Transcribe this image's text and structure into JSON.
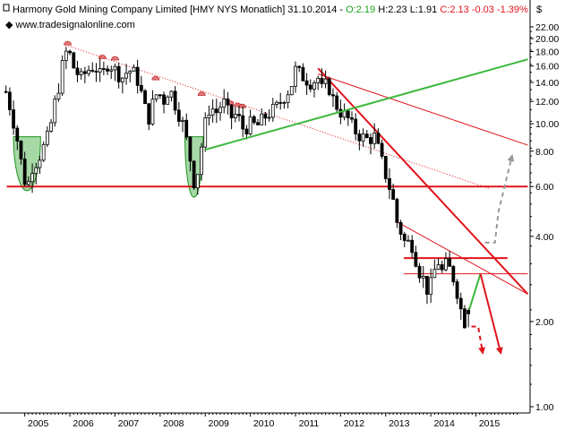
{
  "header": {
    "name_part": "Harmony Gold Mining Company Limited [HMY NYS  Monatlich] 31.10.2014 - ",
    "open_part": "O:2.19",
    "hlc_part": " H:2.23 L:1.91 ",
    "change_part": "C:2.13 -0.03 -1.39%",
    "currency": "$",
    "website": "www.tradesignalonline.com",
    "colors": {
      "open": "#1aa31a",
      "change": "#e0141c"
    }
  },
  "chart_data": {
    "type": "candlestick",
    "title": "Harmony Gold Mining Company Limited [HMY NYS  Monatlich]",
    "y_scale": "log",
    "ylim": [
      1.0,
      22.0
    ],
    "y_ticks": [
      1.0,
      2.0,
      4.0,
      6.0,
      8.0,
      10.0,
      12.0,
      14.0,
      16.0,
      18.0,
      20.0,
      22.0
    ],
    "y_tick_labels": [
      "1.00",
      "2.00",
      "4.00",
      "6.00",
      "8.00",
      "10.00",
      "12.00",
      "14.00",
      "16.00",
      "18.00",
      "20.00",
      "22.00"
    ],
    "xlim": [
      2004.55,
      2016.2
    ],
    "x_ticks": [
      2005,
      2006,
      2007,
      2008,
      2009,
      2010,
      2011,
      2012,
      2013,
      2014,
      2015
    ],
    "x_tick_labels": [
      "2005",
      "2006",
      "2007",
      "2008",
      "2009",
      "2010",
      "2011",
      "2012",
      "2013",
      "2014",
      "2015"
    ],
    "grid": false,
    "last_bar": {
      "date": "31.10.2014",
      "open": 2.19,
      "high": 2.23,
      "low": 1.91,
      "close": 2.13,
      "change": -0.03,
      "change_pct": -1.39
    },
    "price_waypoints": [
      [
        2004.58,
        13.0
      ],
      [
        2004.7,
        11.0
      ],
      [
        2004.85,
        8.5
      ],
      [
        2004.95,
        6.8
      ],
      [
        2005.05,
        5.8
      ],
      [
        2005.15,
        7.0
      ],
      [
        2005.3,
        7.5
      ],
      [
        2005.45,
        8.5
      ],
      [
        2005.55,
        9.3
      ],
      [
        2005.65,
        11.5
      ],
      [
        2005.75,
        13.5
      ],
      [
        2005.85,
        16.5
      ],
      [
        2005.95,
        18.5
      ],
      [
        2006.1,
        15.5
      ],
      [
        2006.25,
        14.5
      ],
      [
        2006.4,
        15.5
      ],
      [
        2006.55,
        16.0
      ],
      [
        2006.7,
        14.5
      ],
      [
        2006.85,
        16.5
      ],
      [
        2007.0,
        15.5
      ],
      [
        2007.15,
        14.5
      ],
      [
        2007.3,
        15.5
      ],
      [
        2007.45,
        15.0
      ],
      [
        2007.55,
        13.5
      ],
      [
        2007.65,
        11.5
      ],
      [
        2007.75,
        10.5
      ],
      [
        2007.85,
        12.0
      ],
      [
        2007.95,
        13.0
      ],
      [
        2008.1,
        12.0
      ],
      [
        2008.2,
        13.5
      ],
      [
        2008.35,
        11.5
      ],
      [
        2008.5,
        10.0
      ],
      [
        2008.6,
        8.5
      ],
      [
        2008.7,
        7.0
      ],
      [
        2008.78,
        5.8
      ],
      [
        2008.9,
        8.0
      ],
      [
        2009.0,
        10.0
      ],
      [
        2009.1,
        11.5
      ],
      [
        2009.25,
        11.0
      ],
      [
        2009.4,
        12.0
      ],
      [
        2009.55,
        10.5
      ],
      [
        2009.7,
        10.8
      ],
      [
        2009.85,
        9.5
      ],
      [
        2010.0,
        10.0
      ],
      [
        2010.15,
        9.8
      ],
      [
        2010.3,
        10.5
      ],
      [
        2010.45,
        11.0
      ],
      [
        2010.6,
        11.5
      ],
      [
        2010.75,
        12.5
      ],
      [
        2010.9,
        13.5
      ],
      [
        2011.0,
        15.5
      ],
      [
        2011.1,
        15.0
      ],
      [
        2011.2,
        14.5
      ],
      [
        2011.35,
        14.0
      ],
      [
        2011.5,
        14.5
      ],
      [
        2011.6,
        13.0
      ],
      [
        2011.7,
        14.0
      ],
      [
        2011.85,
        12.0
      ],
      [
        2012.0,
        11.0
      ],
      [
        2012.15,
        10.5
      ],
      [
        2012.3,
        9.5
      ],
      [
        2012.45,
        9.0
      ],
      [
        2012.6,
        8.8
      ],
      [
        2012.75,
        9.0
      ],
      [
        2012.85,
        8.0
      ],
      [
        2012.95,
        7.0
      ],
      [
        2013.05,
        6.2
      ],
      [
        2013.15,
        5.5
      ],
      [
        2013.25,
        4.5
      ],
      [
        2013.35,
        4.1
      ],
      [
        2013.45,
        3.7
      ],
      [
        2013.55,
        3.9
      ],
      [
        2013.65,
        3.4
      ],
      [
        2013.75,
        3.0
      ],
      [
        2013.85,
        2.8
      ],
      [
        2013.95,
        2.5
      ],
      [
        2014.05,
        2.9
      ],
      [
        2014.15,
        3.3
      ],
      [
        2014.25,
        3.0
      ],
      [
        2014.35,
        3.2
      ],
      [
        2014.45,
        3.0
      ],
      [
        2014.55,
        2.7
      ],
      [
        2014.65,
        2.25
      ],
      [
        2014.75,
        2.0
      ],
      [
        2014.83,
        2.13
      ]
    ],
    "annotations": [
      {
        "type": "ellipse",
        "color": "#1e961e",
        "x": [
          2004.75,
          2005.35
        ],
        "y": [
          5.8,
          9.0
        ]
      },
      {
        "type": "ellipse",
        "color": "#1e961e",
        "x": [
          2008.55,
          2008.95
        ],
        "y": [
          5.5,
          9.0
        ]
      },
      {
        "type": "top_marker",
        "color": "#e07b7b",
        "points": [
          [
            2005.95,
            19.0
          ],
          [
            2006.72,
            17.0
          ],
          [
            2007.0,
            16.8
          ],
          [
            2007.9,
            14.3
          ],
          [
            2008.92,
            12.6
          ],
          [
            2009.55,
            11.7
          ],
          [
            2009.72,
            11.5
          ],
          [
            2009.82,
            11.4
          ]
        ]
      },
      {
        "type": "line",
        "color": "#e0141c",
        "style": "dotted",
        "from": [
          2005.9,
          19.0
        ],
        "to": [
          2015.3,
          5.9
        ]
      },
      {
        "type": "line",
        "color": "#e0141c",
        "style": "solid",
        "width": 2,
        "from": [
          2004.6,
          6.0
        ],
        "to": [
          2016.15,
          6.0
        ]
      },
      {
        "type": "line",
        "color": "#e0141c",
        "style": "solid",
        "width": 2,
        "from": [
          2011.5,
          15.7
        ],
        "to": [
          2016.15,
          2.5
        ]
      },
      {
        "type": "line",
        "color": "#e0141c",
        "style": "solid",
        "width": 1,
        "from": [
          2011.5,
          15.0
        ],
        "to": [
          2016.15,
          8.4
        ]
      },
      {
        "type": "line",
        "color": "#e0141c",
        "style": "solid",
        "width": 1,
        "from": [
          2013.25,
          4.5
        ],
        "to": [
          2016.15,
          2.5
        ]
      },
      {
        "type": "line",
        "color": "#e0141c",
        "style": "solid",
        "width": 2,
        "from": [
          2013.4,
          3.35
        ],
        "to": [
          2015.7,
          3.35
        ]
      },
      {
        "type": "line",
        "color": "#e0141c",
        "style": "solid",
        "width": 1,
        "from": [
          2013.4,
          2.95
        ],
        "to": [
          2016.15,
          2.95
        ]
      },
      {
        "type": "line",
        "color": "#3cb83c",
        "style": "solid",
        "width": 2,
        "from": [
          2009.0,
          8.1
        ],
        "to": [
          2016.15,
          16.9
        ]
      },
      {
        "type": "path",
        "color": "#3cb83c",
        "style": "solid",
        "width": 2,
        "points": [
          [
            2014.85,
            2.2
          ],
          [
            2015.1,
            2.95
          ]
        ]
      },
      {
        "type": "arrow",
        "color": "#e0141c",
        "style": "solid",
        "width": 2,
        "points": [
          [
            2015.1,
            2.95
          ],
          [
            2015.55,
            1.55
          ]
        ]
      },
      {
        "type": "arrow",
        "color": "#e0141c",
        "style": "dashed",
        "width": 2,
        "points": [
          [
            2014.9,
            1.92
          ],
          [
            2015.05,
            1.92
          ],
          [
            2015.15,
            1.55
          ]
        ]
      },
      {
        "type": "arrow",
        "color": "#999999",
        "style": "dashed",
        "width": 2,
        "points": [
          [
            2015.2,
            3.8
          ],
          [
            2015.42,
            3.8
          ],
          [
            2015.5,
            4.9
          ],
          [
            2015.8,
            7.7
          ]
        ]
      }
    ]
  }
}
